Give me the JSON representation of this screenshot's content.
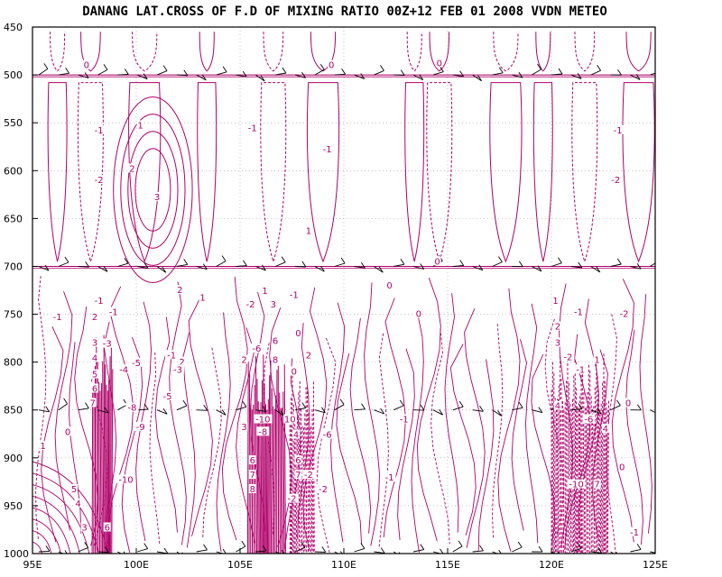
{
  "chart_data": {
    "type": "contour",
    "title": "DANANG LAT.CROSS OF F.D OF MIXING RATIO 00Z+12 FEB 01 2008 VVDN METEO",
    "xlabel": "",
    "ylabel": "",
    "x_ticks": [
      "95E",
      "100E",
      "105E",
      "110E",
      "115E",
      "120E",
      "125E"
    ],
    "x_tick_values": [
      95,
      100,
      105,
      110,
      115,
      120,
      125
    ],
    "y_ticks": [
      "450",
      "500",
      "550",
      "600",
      "650",
      "700",
      "750",
      "800",
      "850",
      "900",
      "950",
      "1000"
    ],
    "y_tick_values": [
      450,
      500,
      550,
      600,
      650,
      700,
      750,
      800,
      850,
      900,
      950,
      1000
    ],
    "xlim": [
      95,
      125
    ],
    "ylim": [
      1000,
      450
    ],
    "grid": true,
    "contour_color": "#b0006a",
    "wind_barb_levels": [
      500,
      700,
      850,
      1000
    ],
    "wind_barb_color": "#000000",
    "contour_labels": [
      {
        "x": 97.6,
        "y": 492,
        "text": "0"
      },
      {
        "x": 109.4,
        "y": 492,
        "text": "0"
      },
      {
        "x": 114.6,
        "y": 490,
        "text": "0"
      },
      {
        "x": 98.2,
        "y": 560,
        "text": "-1"
      },
      {
        "x": 100.2,
        "y": 555,
        "text": "1"
      },
      {
        "x": 99.8,
        "y": 600,
        "text": "2"
      },
      {
        "x": 98.2,
        "y": 612,
        "text": "-2"
      },
      {
        "x": 101.0,
        "y": 630,
        "text": "3"
      },
      {
        "x": 105.6,
        "y": 558,
        "text": "-1"
      },
      {
        "x": 109.2,
        "y": 580,
        "text": "-1"
      },
      {
        "x": 108.3,
        "y": 665,
        "text": "1"
      },
      {
        "x": 123.2,
        "y": 560,
        "text": "-1"
      },
      {
        "x": 123.1,
        "y": 612,
        "text": "-2"
      },
      {
        "x": 114.5,
        "y": 697,
        "text": "0"
      },
      {
        "x": 102.1,
        "y": 727,
        "text": "2"
      },
      {
        "x": 103.2,
        "y": 735,
        "text": "1"
      },
      {
        "x": 98.2,
        "y": 738,
        "text": "-1"
      },
      {
        "x": 96.2,
        "y": 755,
        "text": "-1"
      },
      {
        "x": 98.0,
        "y": 755,
        "text": "2"
      },
      {
        "x": 98.9,
        "y": 750,
        "text": "-1"
      },
      {
        "x": 105.5,
        "y": 742,
        "text": "-2"
      },
      {
        "x": 106.2,
        "y": 728,
        "text": "1"
      },
      {
        "x": 106.6,
        "y": 742,
        "text": "3"
      },
      {
        "x": 107.6,
        "y": 732,
        "text": "-1"
      },
      {
        "x": 107.8,
        "y": 772,
        "text": "0"
      },
      {
        "x": 112.2,
        "y": 722,
        "text": "0"
      },
      {
        "x": 113.6,
        "y": 752,
        "text": "0"
      },
      {
        "x": 120.2,
        "y": 738,
        "text": "1"
      },
      {
        "x": 120.3,
        "y": 765,
        "text": "2"
      },
      {
        "x": 121.3,
        "y": 750,
        "text": "-1"
      },
      {
        "x": 123.5,
        "y": 752,
        "text": "-2"
      },
      {
        "x": 98.0,
        "y": 782,
        "text": "3"
      },
      {
        "x": 98.0,
        "y": 798,
        "text": "4"
      },
      {
        "x": 98.0,
        "y": 815,
        "text": "5"
      },
      {
        "x": 98.0,
        "y": 830,
        "text": "6"
      },
      {
        "x": 98.6,
        "y": 783,
        "text": "-3"
      },
      {
        "x": 99.4,
        "y": 810,
        "text": "-4"
      },
      {
        "x": 100.0,
        "y": 803,
        "text": "-5"
      },
      {
        "x": 101.7,
        "y": 795,
        "text": "-1"
      },
      {
        "x": 102.2,
        "y": 802,
        "text": "2"
      },
      {
        "x": 101.5,
        "y": 838,
        "text": "-5"
      },
      {
        "x": 102.0,
        "y": 810,
        "text": "-3"
      },
      {
        "x": 105.8,
        "y": 788,
        "text": "-6"
      },
      {
        "x": 106.7,
        "y": 780,
        "text": "6"
      },
      {
        "x": 106.7,
        "y": 800,
        "text": "8"
      },
      {
        "x": 105.2,
        "y": 800,
        "text": "2"
      },
      {
        "x": 107.6,
        "y": 812,
        "text": "0"
      },
      {
        "x": 108.3,
        "y": 795,
        "text": "2"
      },
      {
        "x": 120.3,
        "y": 782,
        "text": "3"
      },
      {
        "x": 120.8,
        "y": 797,
        "text": "-2"
      },
      {
        "x": 121.4,
        "y": 810,
        "text": "-1"
      },
      {
        "x": 122.2,
        "y": 800,
        "text": "1"
      },
      {
        "x": 123.7,
        "y": 845,
        "text": "0"
      },
      {
        "x": 97.9,
        "y": 845,
        "text": "7"
      },
      {
        "x": 99.8,
        "y": 850,
        "text": "-8"
      },
      {
        "x": 100.2,
        "y": 870,
        "text": "-9"
      },
      {
        "x": 96.7,
        "y": 875,
        "text": "0"
      },
      {
        "x": 95.5,
        "y": 890,
        "text": "1"
      },
      {
        "x": 105.2,
        "y": 870,
        "text": "3"
      },
      {
        "x": 106.1,
        "y": 862,
        "text": "-10"
      },
      {
        "x": 106.1,
        "y": 875,
        "text": "-8"
      },
      {
        "x": 107.4,
        "y": 862,
        "text": "10"
      },
      {
        "x": 107.7,
        "y": 878,
        "text": "4"
      },
      {
        "x": 109.2,
        "y": 878,
        "text": "-6"
      },
      {
        "x": 112.9,
        "y": 862,
        "text": "-1"
      },
      {
        "x": 120.3,
        "y": 848,
        "text": "4"
      },
      {
        "x": 121.8,
        "y": 862,
        "text": "-6"
      },
      {
        "x": 122.6,
        "y": 872,
        "text": "4"
      },
      {
        "x": 105.6,
        "y": 905,
        "text": "6"
      },
      {
        "x": 105.6,
        "y": 920,
        "text": "7"
      },
      {
        "x": 105.6,
        "y": 935,
        "text": "8"
      },
      {
        "x": 107.8,
        "y": 905,
        "text": "6"
      },
      {
        "x": 107.8,
        "y": 920,
        "text": "7"
      },
      {
        "x": 108.3,
        "y": 920,
        "text": "-2"
      },
      {
        "x": 109.0,
        "y": 935,
        "text": "-2"
      },
      {
        "x": 107.5,
        "y": 945,
        "text": "-2"
      },
      {
        "x": 99.5,
        "y": 925,
        "text": "-10"
      },
      {
        "x": 97.0,
        "y": 935,
        "text": "5"
      },
      {
        "x": 97.2,
        "y": 950,
        "text": "4"
      },
      {
        "x": 97.5,
        "y": 975,
        "text": "3"
      },
      {
        "x": 98.6,
        "y": 975,
        "text": "6"
      },
      {
        "x": 112.2,
        "y": 923,
        "text": "-1"
      },
      {
        "x": 121.2,
        "y": 930,
        "text": "-10"
      },
      {
        "x": 122.2,
        "y": 930,
        "text": "7"
      },
      {
        "x": 123.4,
        "y": 912,
        "text": "0"
      },
      {
        "x": 124.0,
        "y": 980,
        "text": "-1"
      }
    ]
  }
}
